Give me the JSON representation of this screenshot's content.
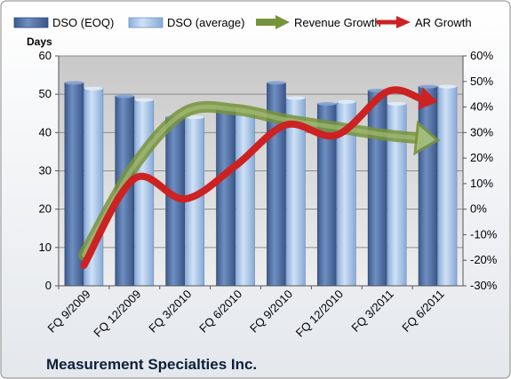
{
  "chart_data": {
    "type": "bar",
    "title": "",
    "company_name": "Measurement Specialties Inc.",
    "left_axis_label": "Days",
    "categories": [
      "FQ 9/2009",
      "FQ 12/2009",
      "FQ 3/2010",
      "FQ 6/2010",
      "FQ 9/2010",
      "FQ 12/2010",
      "FQ 3/2011",
      "FQ 6/2011"
    ],
    "left_axis": {
      "min": 0,
      "max": 60,
      "ticks": [
        "0",
        "10",
        "20",
        "30",
        "40",
        "50",
        "60"
      ]
    },
    "right_axis": {
      "min": -30,
      "max": 60,
      "ticks": [
        "-30%",
        "-20%",
        "-10%",
        "0%",
        "10%",
        "20%",
        "30%",
        "40%",
        "50%",
        "60%"
      ]
    },
    "bar_series": [
      {
        "name": "DSO (EOQ)",
        "color": "#4f6fa3",
        "values": [
          53,
          49.5,
          44,
          46.5,
          53,
          47.5,
          51,
          52
        ]
      },
      {
        "name": "DSO (average)",
        "color": "#a9c6e8",
        "values": [
          51.5,
          48.5,
          44,
          45,
          49,
          48,
          47.5,
          52
        ]
      }
    ],
    "line_series": [
      {
        "name": "Revenue Growth",
        "color": "#77933c",
        "axis": "right",
        "arrow": "hollow",
        "values": [
          -18,
          17,
          38,
          39,
          35,
          32,
          29,
          27
        ]
      },
      {
        "name": "AR Growth",
        "color": "#cc2222",
        "axis": "right",
        "arrow": "solid",
        "values": [
          -22,
          12,
          4,
          17,
          33,
          29,
          46,
          42
        ]
      }
    ],
    "grid": true,
    "legend_position": "top"
  }
}
